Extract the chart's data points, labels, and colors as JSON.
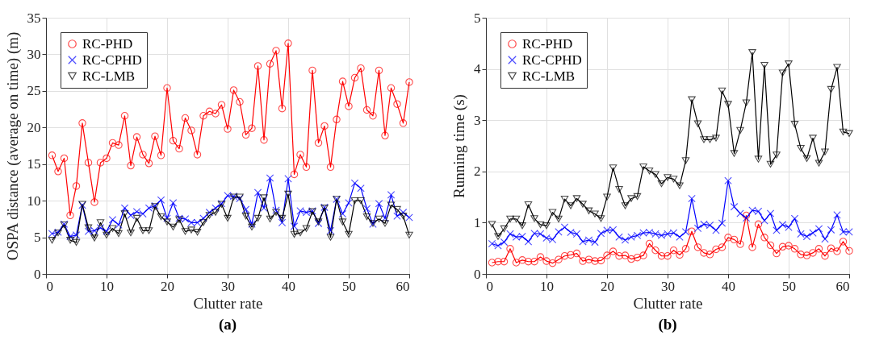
{
  "chart_data": [
    {
      "type": "line",
      "xlabel": "Clutter rate",
      "ylabel": "OSPA distance (average on time) (m)",
      "annotations": [
        "(a)"
      ],
      "x": [
        1,
        2,
        3,
        4,
        5,
        6,
        7,
        8,
        9,
        10,
        11,
        12,
        13,
        14,
        15,
        16,
        17,
        18,
        19,
        20,
        21,
        22,
        23,
        24,
        25,
        26,
        27,
        28,
        29,
        30,
        31,
        32,
        33,
        34,
        35,
        36,
        37,
        38,
        39,
        40,
        41,
        42,
        43,
        44,
        45,
        46,
        47,
        48,
        49,
        50,
        51,
        52,
        53,
        54,
        55,
        56,
        57,
        58,
        59,
        60
      ],
      "xlim": [
        0,
        60
      ],
      "xticks": [
        0,
        10,
        20,
        30,
        40,
        50,
        60
      ],
      "ylim": [
        0,
        35
      ],
      "yticks": [
        0,
        5,
        10,
        15,
        20,
        25,
        30,
        35
      ],
      "grid": true,
      "legend": "top left",
      "line_style": "solid",
      "series": [
        {
          "name": "RC-PHD",
          "color": "#ff0000",
          "marker": "circle",
          "values": [
            16.2,
            14.0,
            15.8,
            8.0,
            12.0,
            20.6,
            15.2,
            9.8,
            15.2,
            15.8,
            17.9,
            17.6,
            21.6,
            14.8,
            18.7,
            16.3,
            15.1,
            18.8,
            16.2,
            25.4,
            18.2,
            17.1,
            21.3,
            19.6,
            16.3,
            21.6,
            22.2,
            21.9,
            23.1,
            19.8,
            25.1,
            23.5,
            19.0,
            19.9,
            28.4,
            18.3,
            28.7,
            30.5,
            22.6,
            31.5,
            13.6,
            16.3,
            14.6,
            27.8,
            17.9,
            20.2,
            14.6,
            21.1,
            26.3,
            22.9,
            26.8,
            28.1,
            22.4,
            21.6,
            27.8,
            18.9,
            25.4,
            23.2,
            20.6,
            26.2
          ]
        },
        {
          "name": "RC-CPHD",
          "color": "#0000ff",
          "marker": "cross",
          "values": [
            5.5,
            5.7,
            6.8,
            5.1,
            5.3,
            9.4,
            5.8,
            5.9,
            6.3,
            5.8,
            7.4,
            6.7,
            9.0,
            8.0,
            8.5,
            8.2,
            9.0,
            9.3,
            10.1,
            7.6,
            9.7,
            7.6,
            7.5,
            7.0,
            7.0,
            7.6,
            8.4,
            9.0,
            9.6,
            10.7,
            10.6,
            10.3,
            8.8,
            6.8,
            11.1,
            9.0,
            13.1,
            8.7,
            7.0,
            13.0,
            6.5,
            8.6,
            8.4,
            8.6,
            6.9,
            9.1,
            5.9,
            10.2,
            8.2,
            9.7,
            12.4,
            11.7,
            8.9,
            6.8,
            9.6,
            7.6,
            10.8,
            7.9,
            8.4,
            7.7
          ]
        },
        {
          "name": "RC-LMB",
          "color": "#000000",
          "marker": "triangle",
          "values": [
            4.6,
            5.6,
            6.7,
            4.6,
            4.3,
            9.5,
            6.3,
            4.9,
            7.0,
            5.3,
            6.2,
            5.5,
            8.2,
            5.6,
            7.6,
            5.9,
            5.9,
            9.2,
            7.8,
            7.1,
            6.4,
            7.4,
            5.8,
            6.0,
            5.7,
            7.0,
            8.0,
            8.4,
            9.5,
            7.6,
            10.5,
            10.5,
            7.9,
            6.4,
            7.6,
            10.4,
            7.5,
            8.4,
            7.6,
            10.9,
            5.4,
            5.6,
            6.2,
            8.5,
            7.1,
            9.0,
            5.0,
            10.2,
            7.1,
            5.4,
            10.0,
            10.0,
            7.8,
            6.9,
            7.5,
            6.9,
            9.4,
            8.8,
            7.9,
            5.3
          ]
        }
      ]
    },
    {
      "type": "line",
      "xlabel": "Clutter rate",
      "ylabel": "Running time (s)",
      "annotations": [
        "(b)"
      ],
      "x": [
        1,
        2,
        3,
        4,
        5,
        6,
        7,
        8,
        9,
        10,
        11,
        12,
        13,
        14,
        15,
        16,
        17,
        18,
        19,
        20,
        21,
        22,
        23,
        24,
        25,
        26,
        27,
        28,
        29,
        30,
        31,
        32,
        33,
        34,
        35,
        36,
        37,
        38,
        39,
        40,
        41,
        42,
        43,
        44,
        45,
        46,
        47,
        48,
        49,
        50,
        51,
        52,
        53,
        54,
        55,
        56,
        57,
        58,
        59,
        60
      ],
      "xlim": [
        0,
        60
      ],
      "xticks": [
        0,
        10,
        20,
        30,
        40,
        50,
        60
      ],
      "ylim": [
        0,
        5
      ],
      "yticks": [
        0,
        1,
        2,
        3,
        4,
        5
      ],
      "grid": true,
      "legend": "top left",
      "line_style": "solid",
      "series": [
        {
          "name": "RC-PHD",
          "color": "#ff0000",
          "marker": "circle",
          "values": [
            0.22,
            0.24,
            0.24,
            0.49,
            0.22,
            0.27,
            0.24,
            0.24,
            0.33,
            0.25,
            0.21,
            0.28,
            0.35,
            0.37,
            0.4,
            0.25,
            0.28,
            0.25,
            0.26,
            0.36,
            0.44,
            0.35,
            0.36,
            0.29,
            0.32,
            0.36,
            0.59,
            0.46,
            0.35,
            0.35,
            0.46,
            0.37,
            0.49,
            0.83,
            0.52,
            0.41,
            0.38,
            0.48,
            0.52,
            0.71,
            0.67,
            0.58,
            1.14,
            0.52,
            0.97,
            0.71,
            0.56,
            0.4,
            0.53,
            0.55,
            0.49,
            0.38,
            0.36,
            0.41,
            0.49,
            0.35,
            0.5,
            0.44,
            0.63,
            0.45
          ]
        },
        {
          "name": "RC-CPHD",
          "color": "#0000ff",
          "marker": "cross",
          "values": [
            0.59,
            0.55,
            0.62,
            0.78,
            0.72,
            0.73,
            0.63,
            0.79,
            0.78,
            0.7,
            0.67,
            0.82,
            0.91,
            0.81,
            0.78,
            0.63,
            0.66,
            0.62,
            0.79,
            0.85,
            0.86,
            0.72,
            0.66,
            0.72,
            0.75,
            0.8,
            0.81,
            0.78,
            0.75,
            0.78,
            0.8,
            0.72,
            0.82,
            1.47,
            0.89,
            0.97,
            0.95,
            0.85,
            0.99,
            1.82,
            1.31,
            1.18,
            1.09,
            1.24,
            1.22,
            1.04,
            1.18,
            0.85,
            0.96,
            0.91,
            1.08,
            0.78,
            0.73,
            0.8,
            0.88,
            0.68,
            0.86,
            1.15,
            0.82,
            0.82
          ]
        },
        {
          "name": "RC-LMB",
          "color": "#000000",
          "marker": "triangle",
          "values": [
            0.97,
            0.73,
            0.88,
            1.07,
            1.07,
            0.94,
            1.35,
            1.08,
            0.96,
            0.94,
            1.2,
            1.07,
            1.46,
            1.33,
            1.47,
            1.36,
            1.23,
            1.17,
            1.08,
            1.5,
            2.07,
            1.65,
            1.33,
            1.47,
            1.51,
            2.09,
            2.01,
            1.94,
            1.76,
            1.88,
            1.85,
            1.72,
            2.21,
            3.4,
            2.93,
            2.62,
            2.62,
            2.65,
            3.57,
            3.31,
            2.35,
            2.8,
            3.34,
            4.32,
            2.24,
            4.07,
            2.14,
            2.32,
            3.92,
            4.1,
            2.92,
            2.45,
            2.25,
            2.65,
            2.16,
            2.38,
            3.6,
            4.03,
            2.77,
            2.74
          ]
        }
      ]
    }
  ]
}
